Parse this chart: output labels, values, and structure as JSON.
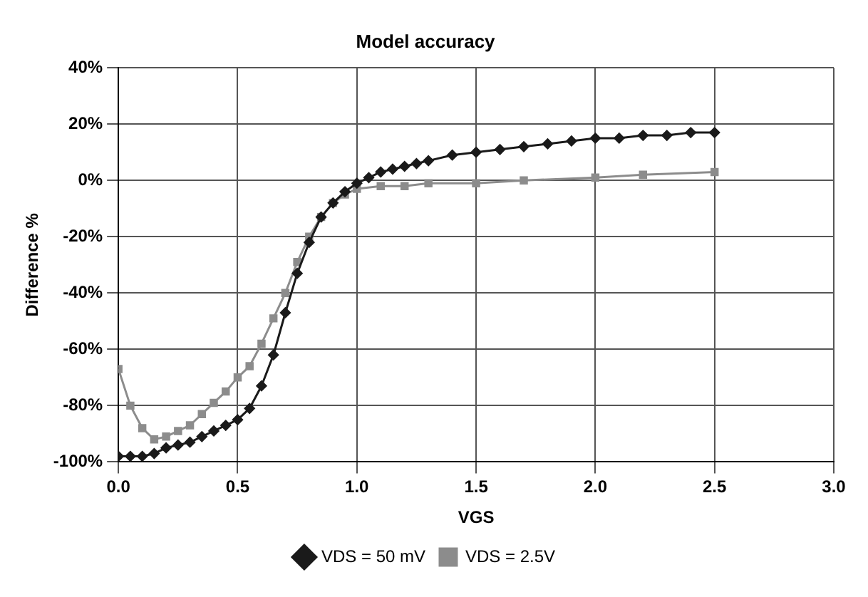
{
  "chart_data": {
    "type": "line",
    "title": "Model accuracy",
    "xlabel": "VGS",
    "ylabel": "Difference %",
    "xlim": [
      0,
      3
    ],
    "xticks": [
      {
        "value": 0,
        "label": "0.0"
      },
      {
        "value": 0.5,
        "label": "0.5"
      },
      {
        "value": 1,
        "label": "1.0"
      },
      {
        "value": 1.5,
        "label": "1.5"
      },
      {
        "value": 2,
        "label": "2.0"
      },
      {
        "value": 2.5,
        "label": "2.5"
      },
      {
        "value": 3,
        "label": "3.0"
      }
    ],
    "ylim": [
      -100,
      40
    ],
    "yticks": [
      {
        "value": -100,
        "label": "-100%"
      },
      {
        "value": -80,
        "label": "-80%"
      },
      {
        "value": -60,
        "label": "-60%"
      },
      {
        "value": -40,
        "label": "-40%"
      },
      {
        "value": -20,
        "label": "-20%"
      },
      {
        "value": 0,
        "label": "0%"
      },
      {
        "value": 20,
        "label": "20%"
      },
      {
        "value": 40,
        "label": "40%"
      }
    ],
    "grid": true,
    "legend": "bottom",
    "series": [
      {
        "name": "VDS = 50 mV",
        "color": "#1a1a1a",
        "marker": "diamond",
        "x": [
          0,
          0.05,
          0.1,
          0.15,
          0.2,
          0.25,
          0.3,
          0.35,
          0.4,
          0.45,
          0.5,
          0.55,
          0.6,
          0.65,
          0.7,
          0.75,
          0.8,
          0.85,
          0.9,
          0.95,
          1.0,
          1.05,
          1.1,
          1.15,
          1.2,
          1.25,
          1.3,
          1.4,
          1.5,
          1.6,
          1.7,
          1.8,
          1.9,
          2.0,
          2.1,
          2.2,
          2.3,
          2.4,
          2.5
        ],
        "values": [
          -98,
          -98,
          -98,
          -97,
          -95,
          -94,
          -93,
          -91,
          -89,
          -87,
          -85,
          -81,
          -73,
          -62,
          -47,
          -33,
          -22,
          -13,
          -8,
          -4,
          -1,
          1,
          3,
          4,
          5,
          6,
          7,
          9,
          10,
          11,
          12,
          13,
          14,
          15,
          15,
          16,
          16,
          17,
          17
        ]
      },
      {
        "name": "VDS = 2.5V",
        "color": "#8c8c8c",
        "marker": "square",
        "x": [
          0,
          0.05,
          0.1,
          0.15,
          0.2,
          0.25,
          0.3,
          0.35,
          0.4,
          0.45,
          0.5,
          0.55,
          0.6,
          0.65,
          0.7,
          0.75,
          0.8,
          0.85,
          0.9,
          0.95,
          1.0,
          1.1,
          1.2,
          1.3,
          1.5,
          1.7,
          2.0,
          2.2,
          2.5
        ],
        "values": [
          -67,
          -80,
          -88,
          -92,
          -91,
          -89,
          -87,
          -83,
          -79,
          -75,
          -70,
          -66,
          -58,
          -49,
          -40,
          -29,
          -20,
          -13,
          -8,
          -5,
          -3,
          -2,
          -2,
          -1,
          -1,
          0,
          1,
          2,
          3
        ]
      }
    ]
  }
}
